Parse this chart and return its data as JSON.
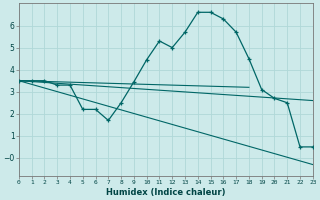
{
  "xlabel": "Humidex (Indice chaleur)",
  "background_color": "#cdeaea",
  "grid_color": "#b0d8d8",
  "line_color": "#006666",
  "ylim": [
    -0.8,
    7.0
  ],
  "xlim": [
    0,
    23
  ],
  "yticks": [
    0,
    1,
    2,
    3,
    4,
    5,
    6
  ],
  "ytick_labels": [
    "−0",
    "1",
    "2",
    "3",
    "4",
    "5",
    "6"
  ],
  "xtick_labels": [
    "0",
    "1",
    "2",
    "3",
    "4",
    "5",
    "6",
    "7",
    "8",
    "9",
    "10",
    "11",
    "12",
    "13",
    "14",
    "15",
    "16",
    "17",
    "18",
    "19",
    "20",
    "21",
    "22",
    "23"
  ],
  "series_main": {
    "x": [
      0,
      1,
      2,
      3,
      4,
      5,
      6,
      7,
      8,
      9,
      10,
      11,
      12,
      13,
      14,
      15,
      16,
      17,
      18,
      19,
      20,
      21,
      22,
      23
    ],
    "y": [
      3.5,
      3.5,
      3.5,
      3.3,
      3.3,
      2.2,
      2.2,
      1.7,
      2.5,
      3.45,
      4.45,
      5.3,
      5.0,
      5.7,
      6.6,
      6.6,
      6.3,
      5.7,
      4.5,
      3.1,
      2.7,
      2.5,
      0.5,
      0.5
    ]
  },
  "series_lines": [
    {
      "x": [
        0,
        18
      ],
      "y": [
        3.5,
        3.2
      ]
    },
    {
      "x": [
        0,
        23
      ],
      "y": [
        3.5,
        2.6
      ]
    },
    {
      "x": [
        0,
        23
      ],
      "y": [
        3.5,
        -0.3
      ]
    }
  ]
}
